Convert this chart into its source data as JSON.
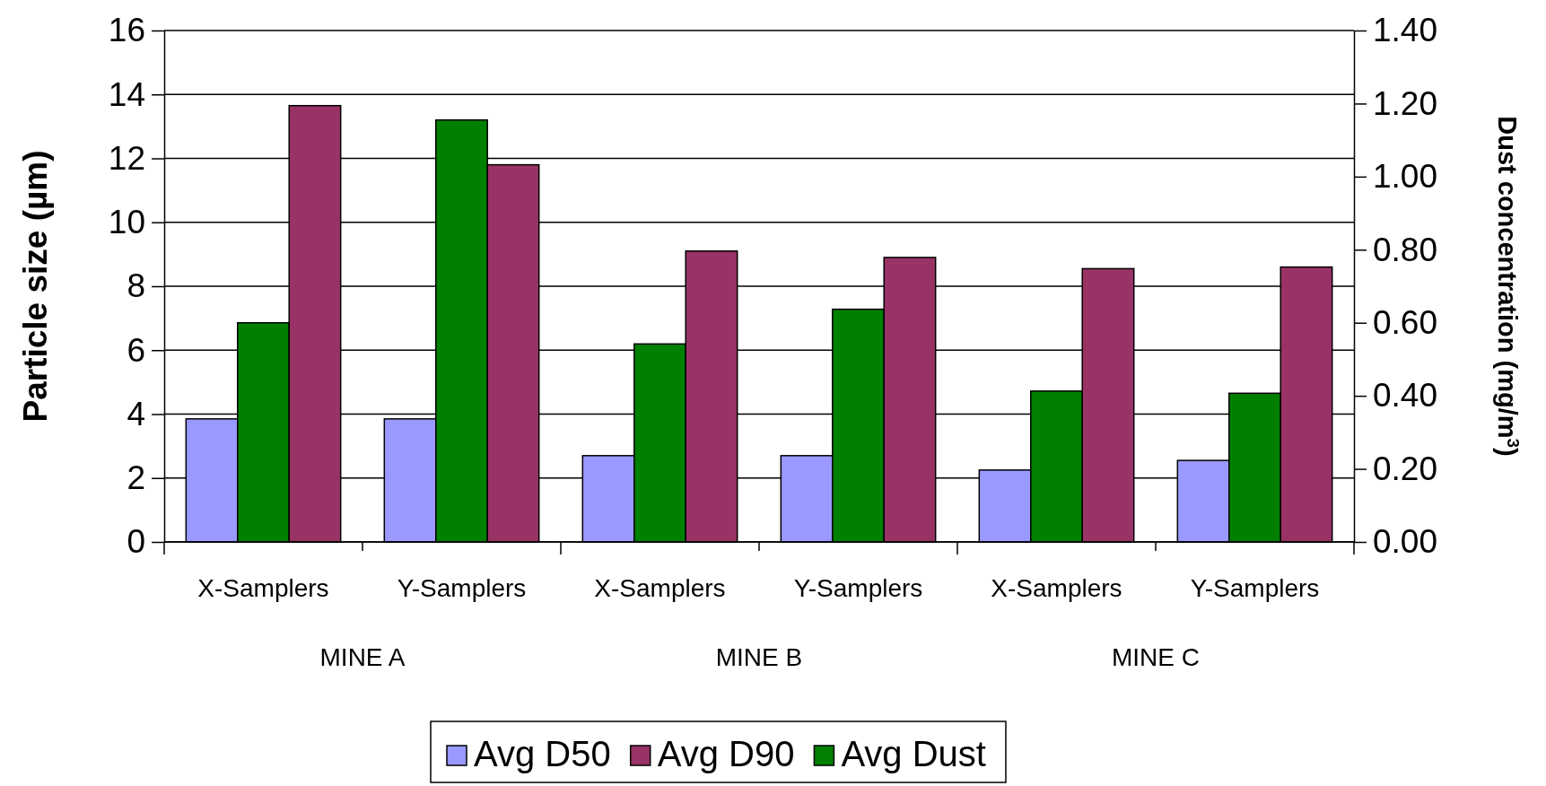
{
  "chart_data": {
    "type": "bar",
    "categories": [
      "X-Samplers",
      "Y-Samplers",
      "X-Samplers",
      "Y-Samplers",
      "X-Samplers",
      "Y-Samplers"
    ],
    "series": [
      {
        "name": "Avg D50",
        "color": "#9999ff",
        "values": [
          3.85,
          3.85,
          2.7,
          2.7,
          2.25,
          2.55
        ]
      },
      {
        "name": "Avg Dust",
        "color": "#008000",
        "axis": "y2",
        "values": [
          0.6,
          1.155,
          0.542,
          0.637,
          0.413,
          0.407
        ]
      },
      {
        "name": "Avg D90",
        "color": "#993366",
        "values": [
          13.65,
          11.8,
          9.1,
          8.9,
          8.55,
          8.6
        ]
      }
    ],
    "ylabel": "Particle size (µm)",
    "y2label": "Dust concentration (mg/m$^{3}$)",
    "ylim": [
      0,
      16
    ],
    "yticks": [
      0,
      2,
      4,
      6,
      8,
      10,
      12,
      14,
      16
    ],
    "y2lim": [
      0,
      1.4
    ],
    "y2ticks": [
      {
        "value": 0,
        "label": "0.00"
      },
      {
        "value": 0.2,
        "label": "0.20"
      },
      {
        "value": 0.4,
        "label": "0.40"
      },
      {
        "value": 0.6,
        "label": "0.60"
      },
      {
        "value": 0.8,
        "label": "0.80"
      },
      {
        "value": 1.0,
        "label": "1.00"
      },
      {
        "value": 1.2,
        "label": "1.20"
      },
      {
        "value": 1.4,
        "label": "1.40"
      }
    ],
    "grid": "y",
    "legend": "bottom",
    "annotations": [
      "MINE A",
      "MINE B",
      "MINE C"
    ]
  }
}
